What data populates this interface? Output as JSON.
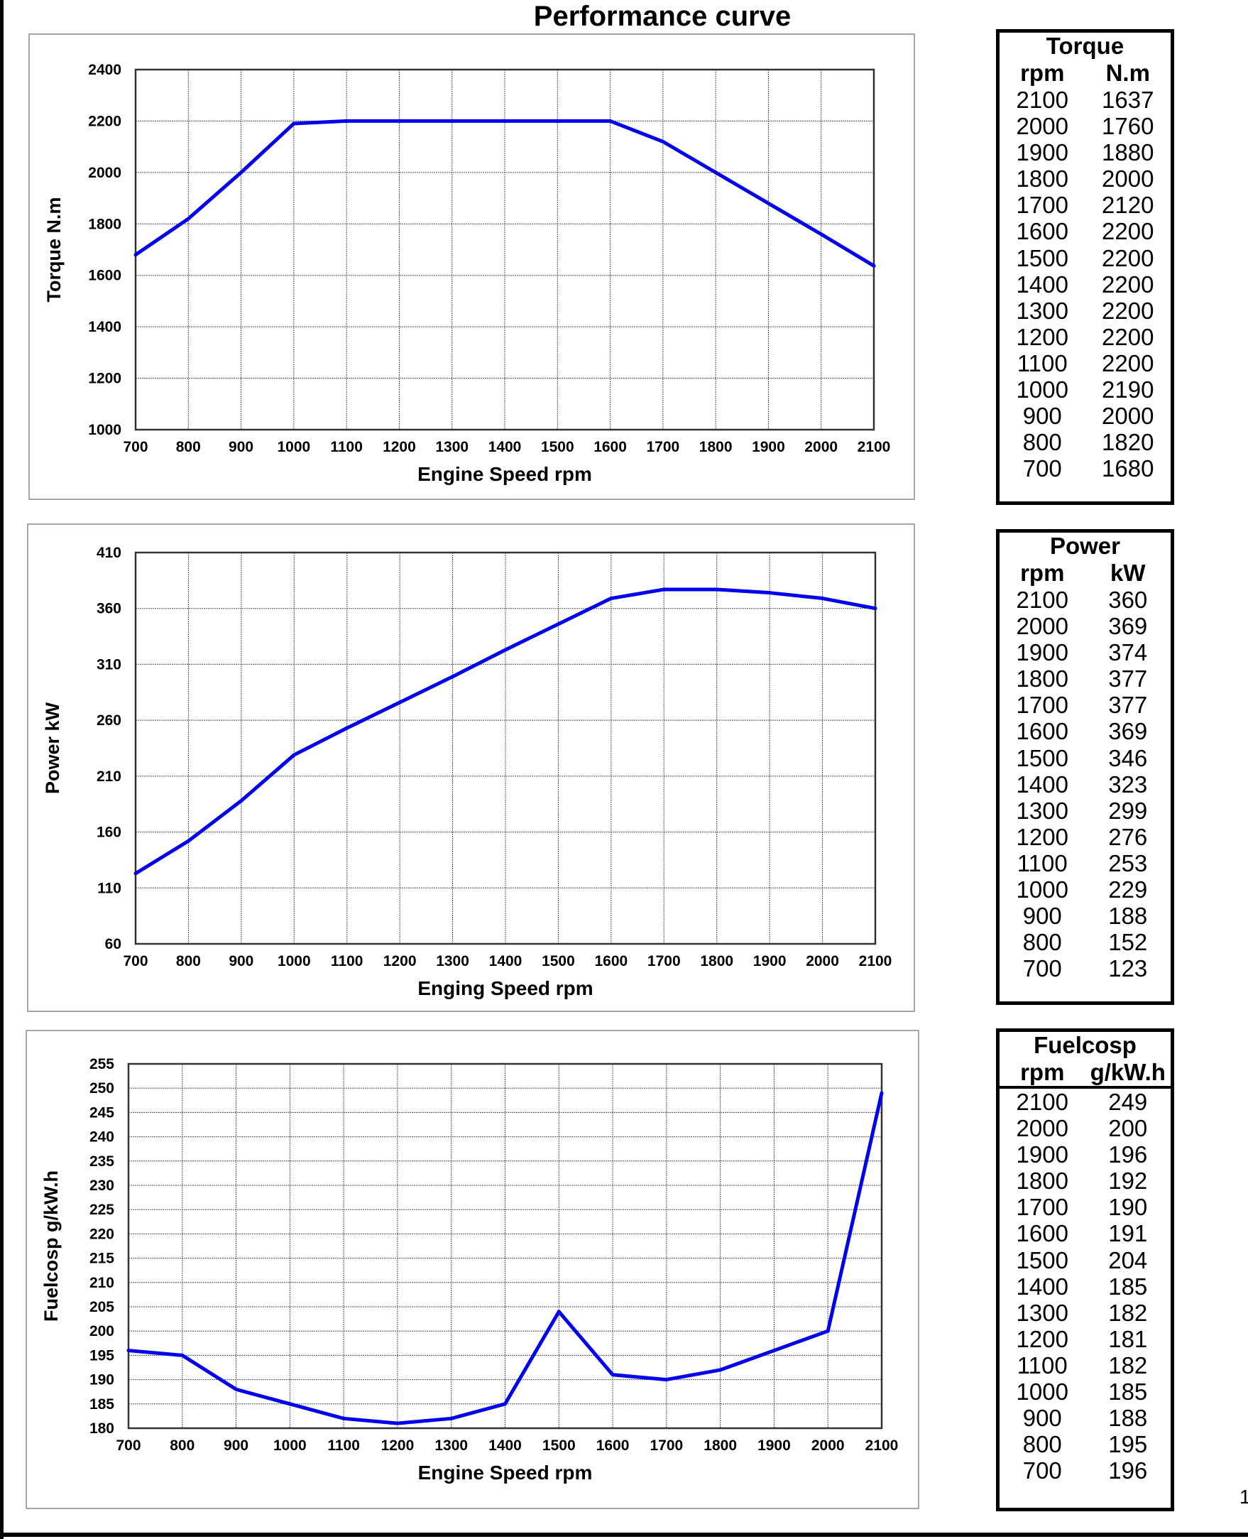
{
  "title": "Performance curve",
  "page_number": "1",
  "line_color": "#0000ee",
  "chart_data": [
    {
      "type": "line",
      "xlabel": "Engine Speed rpm",
      "ylabel": "Torque N.m",
      "x": [
        700,
        800,
        900,
        1000,
        1100,
        1200,
        1300,
        1400,
        1500,
        1600,
        1700,
        1800,
        1900,
        2000,
        2100
      ],
      "xticks": [
        700,
        800,
        900,
        1000,
        1100,
        1200,
        1300,
        1400,
        1500,
        1600,
        1700,
        1800,
        1900,
        2000,
        2100
      ],
      "yticks": [
        1000,
        1200,
        1400,
        1600,
        1800,
        2000,
        2200,
        2400
      ],
      "xlim": [
        700,
        2100
      ],
      "ylim": [
        1000,
        2400
      ],
      "grid": true,
      "series": [
        {
          "values": [
            1680,
            1820,
            2000,
            2190,
            2200,
            2200,
            2200,
            2200,
            2200,
            2200,
            2120,
            2000,
            1880,
            1760,
            1637
          ]
        }
      ]
    },
    {
      "type": "line",
      "xlabel": "Enging Speed rpm",
      "ylabel": "Power kW",
      "x": [
        700,
        800,
        900,
        1000,
        1100,
        1200,
        1300,
        1400,
        1500,
        1600,
        1700,
        1800,
        1900,
        2000,
        2100
      ],
      "xticks": [
        700,
        800,
        900,
        1000,
        1100,
        1200,
        1300,
        1400,
        1500,
        1600,
        1700,
        1800,
        1900,
        2000,
        2100
      ],
      "yticks": [
        60,
        110,
        160,
        210,
        260,
        310,
        360,
        410
      ],
      "xlim": [
        700,
        2100
      ],
      "ylim": [
        60,
        410
      ],
      "grid": true,
      "series": [
        {
          "values": [
            123,
            152,
            188,
            229,
            253,
            276,
            299,
            323,
            346,
            369,
            377,
            377,
            374,
            369,
            360
          ]
        }
      ]
    },
    {
      "type": "line",
      "xlabel": "Engine Speed rpm",
      "ylabel": "Fuelcosp g/kW.h",
      "x": [
        700,
        800,
        900,
        1000,
        1100,
        1200,
        1300,
        1400,
        1500,
        1600,
        1700,
        1800,
        1900,
        2000,
        2100
      ],
      "xticks": [
        700,
        800,
        900,
        1000,
        1100,
        1200,
        1300,
        1400,
        1500,
        1600,
        1700,
        1800,
        1900,
        2000,
        2100
      ],
      "yticks": [
        180,
        185,
        190,
        195,
        200,
        205,
        210,
        215,
        220,
        225,
        230,
        235,
        240,
        245,
        250,
        255
      ],
      "xlim": [
        700,
        2100
      ],
      "ylim": [
        180,
        255
      ],
      "grid": true,
      "series": [
        {
          "values": [
            196,
            195,
            188,
            185,
            182,
            181,
            182,
            185,
            204,
            191,
            190,
            192,
            196,
            200,
            249
          ]
        }
      ]
    }
  ],
  "tables": [
    {
      "title": "Torque",
      "col1": "rpm",
      "col2": "N.m",
      "rows": [
        [
          "2100",
          "1637"
        ],
        [
          "2000",
          "1760"
        ],
        [
          "1900",
          "1880"
        ],
        [
          "1800",
          "2000"
        ],
        [
          "1700",
          "2120"
        ],
        [
          "1600",
          "2200"
        ],
        [
          "1500",
          "2200"
        ],
        [
          "1400",
          "2200"
        ],
        [
          "1300",
          "2200"
        ],
        [
          "1200",
          "2200"
        ],
        [
          "1100",
          "2200"
        ],
        [
          "1000",
          "2190"
        ],
        [
          "900",
          "2000"
        ],
        [
          "800",
          "1820"
        ],
        [
          "700",
          "1680"
        ]
      ]
    },
    {
      "title": "Power",
      "col1": "rpm",
      "col2": "kW",
      "rows": [
        [
          "2100",
          "360"
        ],
        [
          "2000",
          "369"
        ],
        [
          "1900",
          "374"
        ],
        [
          "1800",
          "377"
        ],
        [
          "1700",
          "377"
        ],
        [
          "1600",
          "369"
        ],
        [
          "1500",
          "346"
        ],
        [
          "1400",
          "323"
        ],
        [
          "1300",
          "299"
        ],
        [
          "1200",
          "276"
        ],
        [
          "1100",
          "253"
        ],
        [
          "1000",
          "229"
        ],
        [
          "900",
          "188"
        ],
        [
          "800",
          "152"
        ],
        [
          "700",
          "123"
        ]
      ]
    },
    {
      "title": "Fuelcosp",
      "col1": "rpm",
      "col2": "g/kW.h",
      "rows": [
        [
          "2100",
          "249"
        ],
        [
          "2000",
          "200"
        ],
        [
          "1900",
          "196"
        ],
        [
          "1800",
          "192"
        ],
        [
          "1700",
          "190"
        ],
        [
          "1600",
          "191"
        ],
        [
          "1500",
          "204"
        ],
        [
          "1400",
          "185"
        ],
        [
          "1300",
          "182"
        ],
        [
          "1200",
          "181"
        ],
        [
          "1100",
          "182"
        ],
        [
          "1000",
          "185"
        ],
        [
          "900",
          "188"
        ],
        [
          "800",
          "195"
        ],
        [
          "700",
          "196"
        ]
      ]
    }
  ]
}
